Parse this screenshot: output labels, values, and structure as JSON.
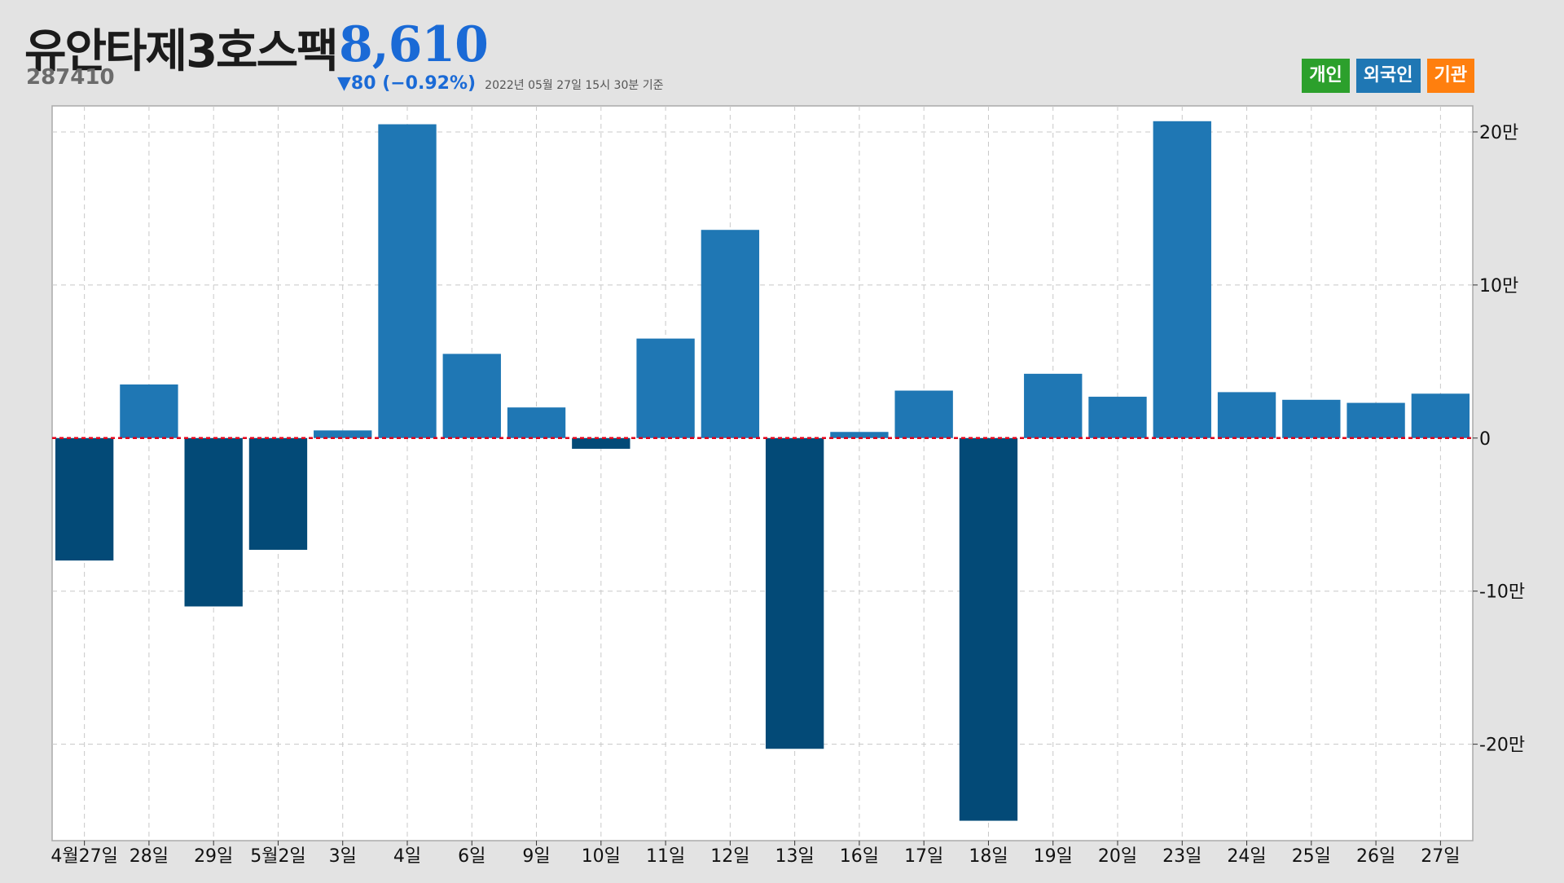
{
  "header": {
    "name": "유안타제3호스팩",
    "code": "287410",
    "price": "8,610",
    "change": "▼80 (−0.92%)",
    "as_of": "2022년 05월 27일 15시 30분 기준"
  },
  "legend": [
    {
      "label": "개인",
      "color": "#2ca02c"
    },
    {
      "label": "외국인",
      "color": "#1f77b4"
    },
    {
      "label": "기관",
      "color": "#ff7f0e"
    }
  ],
  "colors": {
    "positive_bar": "#1f77b4",
    "negative_bar": "#034a77",
    "zero_line": "#e3001b",
    "plot_bg": "#ffffff",
    "grid": "#c8c8c8"
  },
  "chart_data": {
    "type": "bar",
    "categories": [
      "4월27일",
      "28일",
      "29일",
      "5월2일",
      "3일",
      "4일",
      "6일",
      "9일",
      "10일",
      "11일",
      "12일",
      "13일",
      "16일",
      "17일",
      "18일",
      "19일",
      "20일",
      "23일",
      "24일",
      "25일",
      "26일",
      "27일"
    ],
    "values": [
      -80000,
      35000,
      -110000,
      -73000,
      5000,
      205000,
      55000,
      20000,
      -7000,
      65000,
      136000,
      -203000,
      4000,
      31000,
      -250000,
      42000,
      27000,
      207000,
      30000,
      25000,
      23000,
      29000
    ],
    "ylim": [
      -263000,
      217000
    ],
    "yticks": [
      200000,
      100000,
      0,
      -100000,
      -200000
    ],
    "ytick_labels": [
      "20만",
      "10만",
      "0",
      "-10만",
      "-20만"
    ],
    "grid": true,
    "legend_position": "top-right",
    "title": "",
    "xlabel": "",
    "ylabel": ""
  }
}
